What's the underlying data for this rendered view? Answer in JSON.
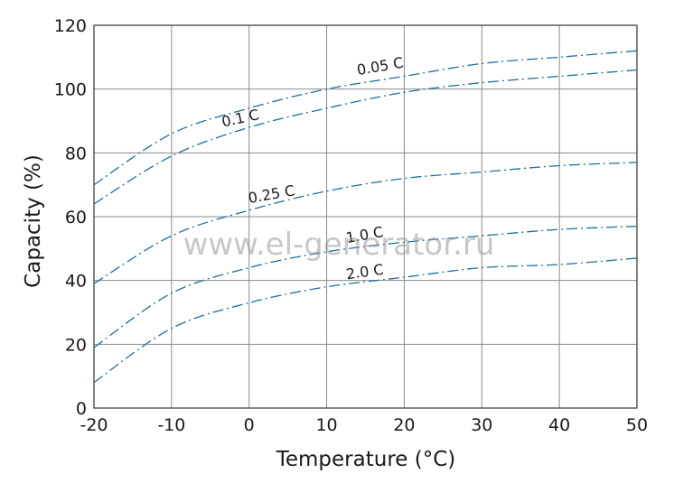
{
  "chart_data": {
    "type": "line",
    "title": "",
    "xlabel": "Temperature (°C)",
    "ylabel": "Capacity (%)",
    "xlim": [
      -20,
      50
    ],
    "ylim": [
      0,
      120
    ],
    "xticks": [
      -20,
      -10,
      0,
      10,
      20,
      30,
      40,
      50
    ],
    "yticks": [
      0,
      20,
      40,
      60,
      80,
      100,
      120
    ],
    "grid": true,
    "line_style": "dash-dot",
    "line_color": "#1f6e9c",
    "x": [
      -20,
      -10,
      0,
      10,
      20,
      30,
      40,
      50
    ],
    "series": [
      {
        "name": "0.05 C",
        "values": [
          70,
          86,
          94,
          100,
          104,
          108,
          110,
          112
        ]
      },
      {
        "name": "0.1 C",
        "values": [
          64,
          79,
          88,
          94,
          99,
          102,
          104,
          106
        ]
      },
      {
        "name": "0.25 C",
        "values": [
          39,
          54,
          62,
          68,
          72,
          74,
          76,
          77
        ]
      },
      {
        "name": "1.0 C",
        "values": [
          19,
          36,
          44,
          49,
          52,
          54,
          56,
          57
        ]
      },
      {
        "name": "2.0 C",
        "values": [
          8,
          25,
          33,
          38,
          41,
          44,
          45,
          47
        ]
      }
    ]
  },
  "watermark": "www.el-generator.ru"
}
